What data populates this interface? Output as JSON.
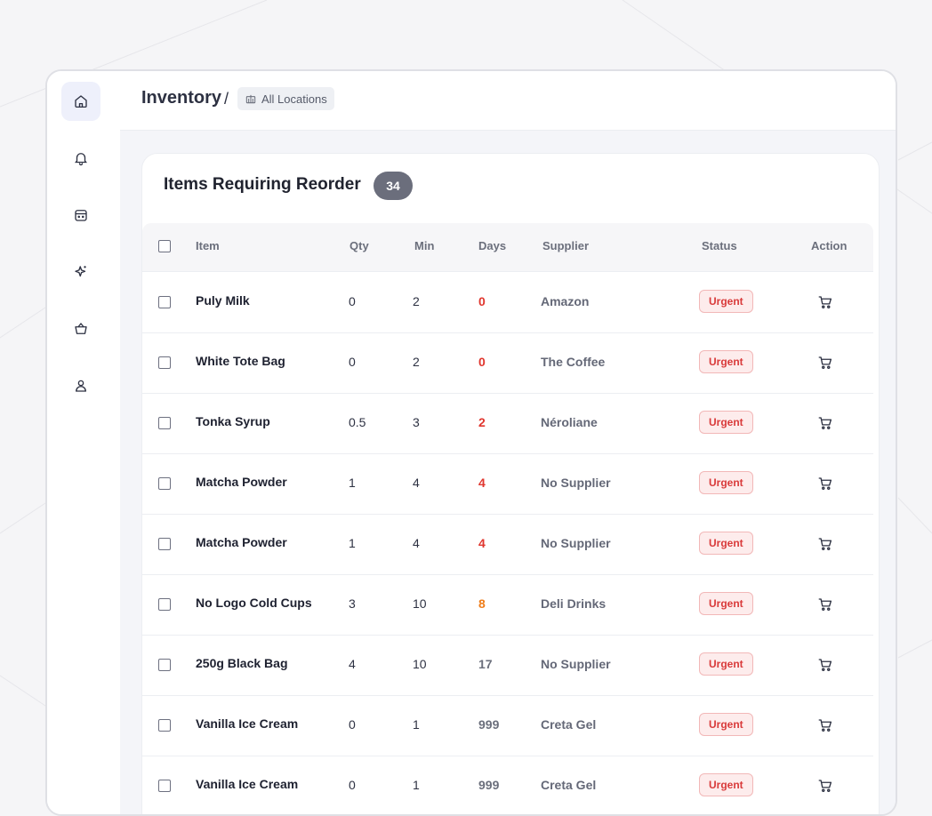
{
  "header": {
    "title": "Inventory",
    "separator": "/",
    "location_chip": "All Locations"
  },
  "sidebar": {
    "items": [
      {
        "icon": "home-icon",
        "active": true
      },
      {
        "icon": "bell-icon",
        "active": false
      },
      {
        "icon": "calendar-icon",
        "active": false
      },
      {
        "icon": "sparkle-icon",
        "active": false
      },
      {
        "icon": "basket-icon",
        "active": false
      },
      {
        "icon": "user-icon",
        "active": false
      }
    ]
  },
  "card": {
    "title": "Items Requiring Reorder",
    "count": "34"
  },
  "table": {
    "columns": {
      "item": "Item",
      "qty": "Qty",
      "min": "Min",
      "days": "Days",
      "supplier": "Supplier",
      "status": "Status",
      "action": "Action"
    },
    "rows": [
      {
        "item": "Puly Milk",
        "qty": "0",
        "min": "2",
        "days": "0",
        "supplier": "Amazon",
        "status": "Urgent"
      },
      {
        "item": "White Tote Bag",
        "qty": "0",
        "min": "2",
        "days": "0",
        "supplier": "The Coffee",
        "status": "Urgent"
      },
      {
        "item": "Tonka Syrup",
        "qty": "0.5",
        "min": "3",
        "days": "2",
        "supplier": "Néroliane",
        "status": "Urgent"
      },
      {
        "item": "Matcha Powder",
        "qty": "1",
        "min": "4",
        "days": "4",
        "supplier": "No Supplier",
        "status": "Urgent"
      },
      {
        "item": "Matcha Powder",
        "qty": "1",
        "min": "4",
        "days": "4",
        "supplier": "No Supplier",
        "status": "Urgent"
      },
      {
        "item": "No Logo Cold Cups",
        "qty": "3",
        "min": "10",
        "days": "8",
        "supplier": "Deli Drinks",
        "status": "Urgent"
      },
      {
        "item": "250g Black Bag",
        "qty": "4",
        "min": "10",
        "days": "17",
        "supplier": "No Supplier",
        "status": "Urgent"
      },
      {
        "item": "Vanilla Ice Cream",
        "qty": "0",
        "min": "1",
        "days": "999",
        "supplier": "Creta Gel",
        "status": "Urgent"
      },
      {
        "item": "Vanilla Ice Cream",
        "qty": "0",
        "min": "1",
        "days": "999",
        "supplier": "Creta Gel",
        "status": "Urgent"
      }
    ]
  },
  "colors": {
    "days_critical": "#e0362e",
    "days_warning": "#ef7d1a",
    "days_normal": "#6b6f7c",
    "urgent_text": "#d93a3a",
    "urgent_bg": "#fdecec",
    "active_nav_bg": "#eef0fb"
  }
}
